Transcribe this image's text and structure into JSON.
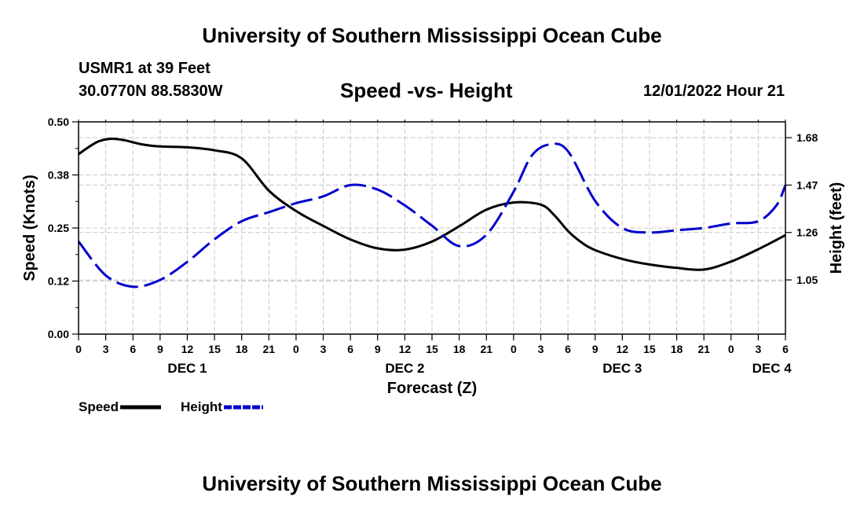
{
  "header": {
    "title": "University of Southern Mississippi Ocean Cube",
    "station": "USMR1 at 39 Feet",
    "coordinates": "30.0770N  88.5830W",
    "subtitle": "Speed -vs- Height",
    "run_time": "12/01/2022 Hour 21"
  },
  "footer": {
    "title": "University of Southern Mississippi Ocean Cube"
  },
  "legend": {
    "speed_label": "Speed",
    "height_label": "Height"
  },
  "colors": {
    "speed": "#000000",
    "height": "#0000cc",
    "grid": "#c8c8c8"
  },
  "chart_data": {
    "type": "line",
    "title": "Speed -vs- Height",
    "xlabel": "Forecast (Z)",
    "ylabel": "Speed (Knots)",
    "y2label": "Height (feet)",
    "x_range": [
      0,
      78
    ],
    "x_ticks": [
      0,
      3,
      6,
      9,
      12,
      15,
      18,
      21,
      24,
      27,
      30,
      33,
      36,
      39,
      42,
      45,
      48,
      51,
      54,
      57,
      60,
      63,
      66,
      69,
      72,
      75,
      78
    ],
    "x_tick_labels": [
      "0",
      "3",
      "6",
      "9",
      "12",
      "15",
      "18",
      "21",
      "0",
      "3",
      "6",
      "9",
      "12",
      "15",
      "18",
      "21",
      "0",
      "3",
      "6",
      "9",
      "12",
      "15",
      "18",
      "21",
      "0",
      "3",
      "6"
    ],
    "day_labels": [
      {
        "x": 12,
        "label": "DEC 1"
      },
      {
        "x": 36,
        "label": "DEC 2"
      },
      {
        "x": 60,
        "label": "DEC 3"
      },
      {
        "x": 76.5,
        "label": "DEC 4"
      }
    ],
    "y_left": {
      "range": [
        0,
        0.5
      ],
      "ticks": [
        0,
        0.125,
        0.25,
        0.375,
        0.5
      ],
      "tick_labels": [
        "0.00",
        "0.12",
        "0.25",
        "0.38",
        "0.50"
      ]
    },
    "y_right": {
      "range": [
        0.81,
        1.75
      ],
      "ticks": [
        1.05,
        1.26,
        1.47,
        1.68
      ],
      "tick_labels": [
        "1.05",
        "1.26",
        "1.47",
        "1.68"
      ]
    },
    "series": [
      {
        "name": "Speed",
        "axis": "left",
        "style": "solid",
        "x": [
          0,
          2,
          3.5,
          5,
          7,
          9,
          12,
          15,
          18,
          21,
          24,
          27,
          30,
          33,
          36,
          39,
          42,
          45,
          48,
          51,
          52.5,
          54,
          55.5,
          57,
          60,
          63,
          66,
          69,
          72,
          75,
          78
        ],
        "values": [
          0.424,
          0.452,
          0.46,
          0.457,
          0.447,
          0.442,
          0.44,
          0.433,
          0.414,
          0.338,
          0.29,
          0.255,
          0.223,
          0.202,
          0.199,
          0.218,
          0.254,
          0.293,
          0.31,
          0.305,
          0.28,
          0.243,
          0.216,
          0.198,
          0.177,
          0.164,
          0.156,
          0.152,
          0.171,
          0.2,
          0.233
        ]
      },
      {
        "name": "Height",
        "axis": "right",
        "style": "dashed",
        "x": [
          0,
          3,
          6,
          9,
          12,
          15,
          18,
          21,
          24,
          27,
          30,
          33,
          36,
          39,
          42,
          45,
          48,
          50,
          52,
          54,
          57,
          60,
          63,
          66,
          69,
          72,
          75,
          77,
          78
        ],
        "values": [
          1.22,
          1.07,
          1.02,
          1.05,
          1.13,
          1.23,
          1.31,
          1.35,
          1.39,
          1.42,
          1.47,
          1.45,
          1.38,
          1.29,
          1.2,
          1.25,
          1.44,
          1.6,
          1.65,
          1.62,
          1.4,
          1.28,
          1.26,
          1.27,
          1.28,
          1.3,
          1.31,
          1.38,
          1.47
        ]
      }
    ]
  }
}
